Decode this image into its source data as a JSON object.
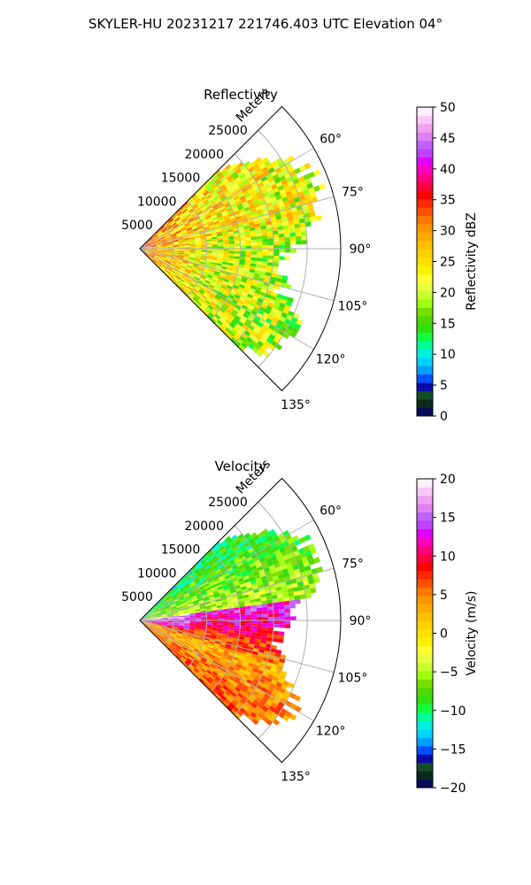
{
  "figure": {
    "suptitle": "SKYLER-HU  20231217  221746.403 UTC Elevation 04°"
  },
  "chart_data": [
    {
      "type": "heatmap",
      "projection": "polar-sector",
      "title": "Reflectivity",
      "range_label": "Meters",
      "range_ticks": [
        5000,
        10000,
        15000,
        20000,
        25000
      ],
      "range_tick_labels": [
        "5000",
        "10000",
        "15000",
        "20000",
        "25000"
      ],
      "range_max_m": 30000,
      "azimuth_range_deg": [
        45,
        135
      ],
      "azimuth_ticks_deg": [
        60,
        75,
        90,
        105,
        120,
        135
      ],
      "azimuth_tick_labels": [
        "60°",
        "75°",
        "90°",
        "105°",
        "120°",
        "135°"
      ],
      "grid": true,
      "colorbar": {
        "label": "Reflectivity dBZ",
        "min": 0,
        "max": 50,
        "ticks": [
          0,
          5,
          10,
          15,
          20,
          25,
          30,
          35,
          40,
          45,
          50
        ],
        "tick_labels": [
          "0",
          "5",
          "10",
          "15",
          "20",
          "25",
          "30",
          "35",
          "40",
          "45",
          "50"
        ],
        "colors": [
          "#0b0b5a",
          "#0b2a1a",
          "#154c2a",
          "#0a0aa8",
          "#0050ff",
          "#00a0ff",
          "#00d2ff",
          "#00f0e0",
          "#00ff9a",
          "#10ff40",
          "#30e010",
          "#50d800",
          "#78e000",
          "#a0ff10",
          "#c8ff30",
          "#e8ff40",
          "#ffff30",
          "#fff000",
          "#ffe000",
          "#ffd000",
          "#ffc000",
          "#ffaa00",
          "#ff9600",
          "#ff7800",
          "#ff5000",
          "#ff2800",
          "#ff0000",
          "#ff0040",
          "#ff0080",
          "#ff00c0",
          "#e000ff",
          "#c040ff",
          "#c060ff",
          "#e080f0",
          "#f0a0f0",
          "#f8c8f8",
          "#fff0ff"
        ]
      }
    },
    {
      "type": "heatmap",
      "projection": "polar-sector",
      "title": "Velocity",
      "range_label": "Meters",
      "range_ticks": [
        5000,
        10000,
        15000,
        20000,
        25000
      ],
      "range_tick_labels": [
        "5000",
        "10000",
        "15000",
        "20000",
        "25000"
      ],
      "range_max_m": 30000,
      "azimuth_range_deg": [
        45,
        135
      ],
      "azimuth_ticks_deg": [
        60,
        75,
        90,
        105,
        120,
        135
      ],
      "azimuth_tick_labels": [
        "60°",
        "75°",
        "90°",
        "105°",
        "120°",
        "135°"
      ],
      "grid": true,
      "colorbar": {
        "label": "Velocity (m/s)",
        "min": -20,
        "max": 20,
        "ticks": [
          -20,
          -15,
          -10,
          -5,
          0,
          5,
          10,
          15,
          20
        ],
        "tick_labels": [
          "−20",
          "−15",
          "−10",
          "−5",
          "0",
          "5",
          "10",
          "15",
          "20"
        ],
        "colors": [
          "#0b0b5a",
          "#0b2a1a",
          "#154c2a",
          "#0a0aa8",
          "#0050ff",
          "#00a0ff",
          "#00d2ff",
          "#00f0e0",
          "#00ff9a",
          "#10ff40",
          "#30e010",
          "#50d800",
          "#78e000",
          "#a0ff10",
          "#c8ff30",
          "#e8ff40",
          "#ffff30",
          "#fff000",
          "#ffe000",
          "#ffd000",
          "#ffc000",
          "#ffaa00",
          "#ff9600",
          "#ff7800",
          "#ff5000",
          "#ff2800",
          "#ff0000",
          "#ff0040",
          "#ff0080",
          "#ff00c0",
          "#e000ff",
          "#c040ff",
          "#c060ff",
          "#e080f0",
          "#f0a0f0",
          "#f8c8f8",
          "#fff0ff"
        ]
      }
    }
  ]
}
